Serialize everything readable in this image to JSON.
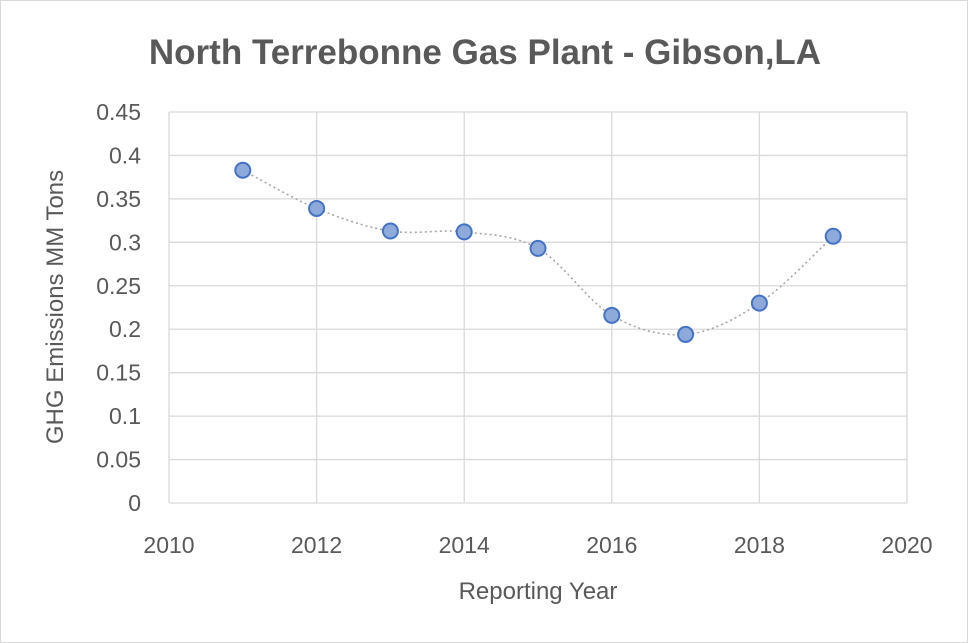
{
  "chart_data": {
    "type": "scatter",
    "title": "North Terrebonne Gas Plant - Gibson,LA",
    "xlabel": "Reporting Year",
    "ylabel": "GHG Emissions MM Tons",
    "xlim": [
      2010,
      2020
    ],
    "ylim": [
      0,
      0.45
    ],
    "x_ticks": [
      "2010",
      "2012",
      "2014",
      "2016",
      "2018",
      "2020"
    ],
    "y_ticks": [
      "0",
      "0.05",
      "0.1",
      "0.15",
      "0.2",
      "0.25",
      "0.3",
      "0.35",
      "0.4",
      "0.45"
    ],
    "grid": true,
    "smoothed_line": true,
    "marker_color": "#8eaadb",
    "marker_edge_color": "#4472c4",
    "line_color": "#a6a6a6",
    "series": [
      {
        "x": [
          2011,
          2012,
          2013,
          2014,
          2015,
          2016,
          2017,
          2018,
          2019
        ],
        "y": [
          0.383,
          0.339,
          0.313,
          0.312,
          0.293,
          0.216,
          0.194,
          0.23,
          0.307
        ]
      }
    ]
  }
}
